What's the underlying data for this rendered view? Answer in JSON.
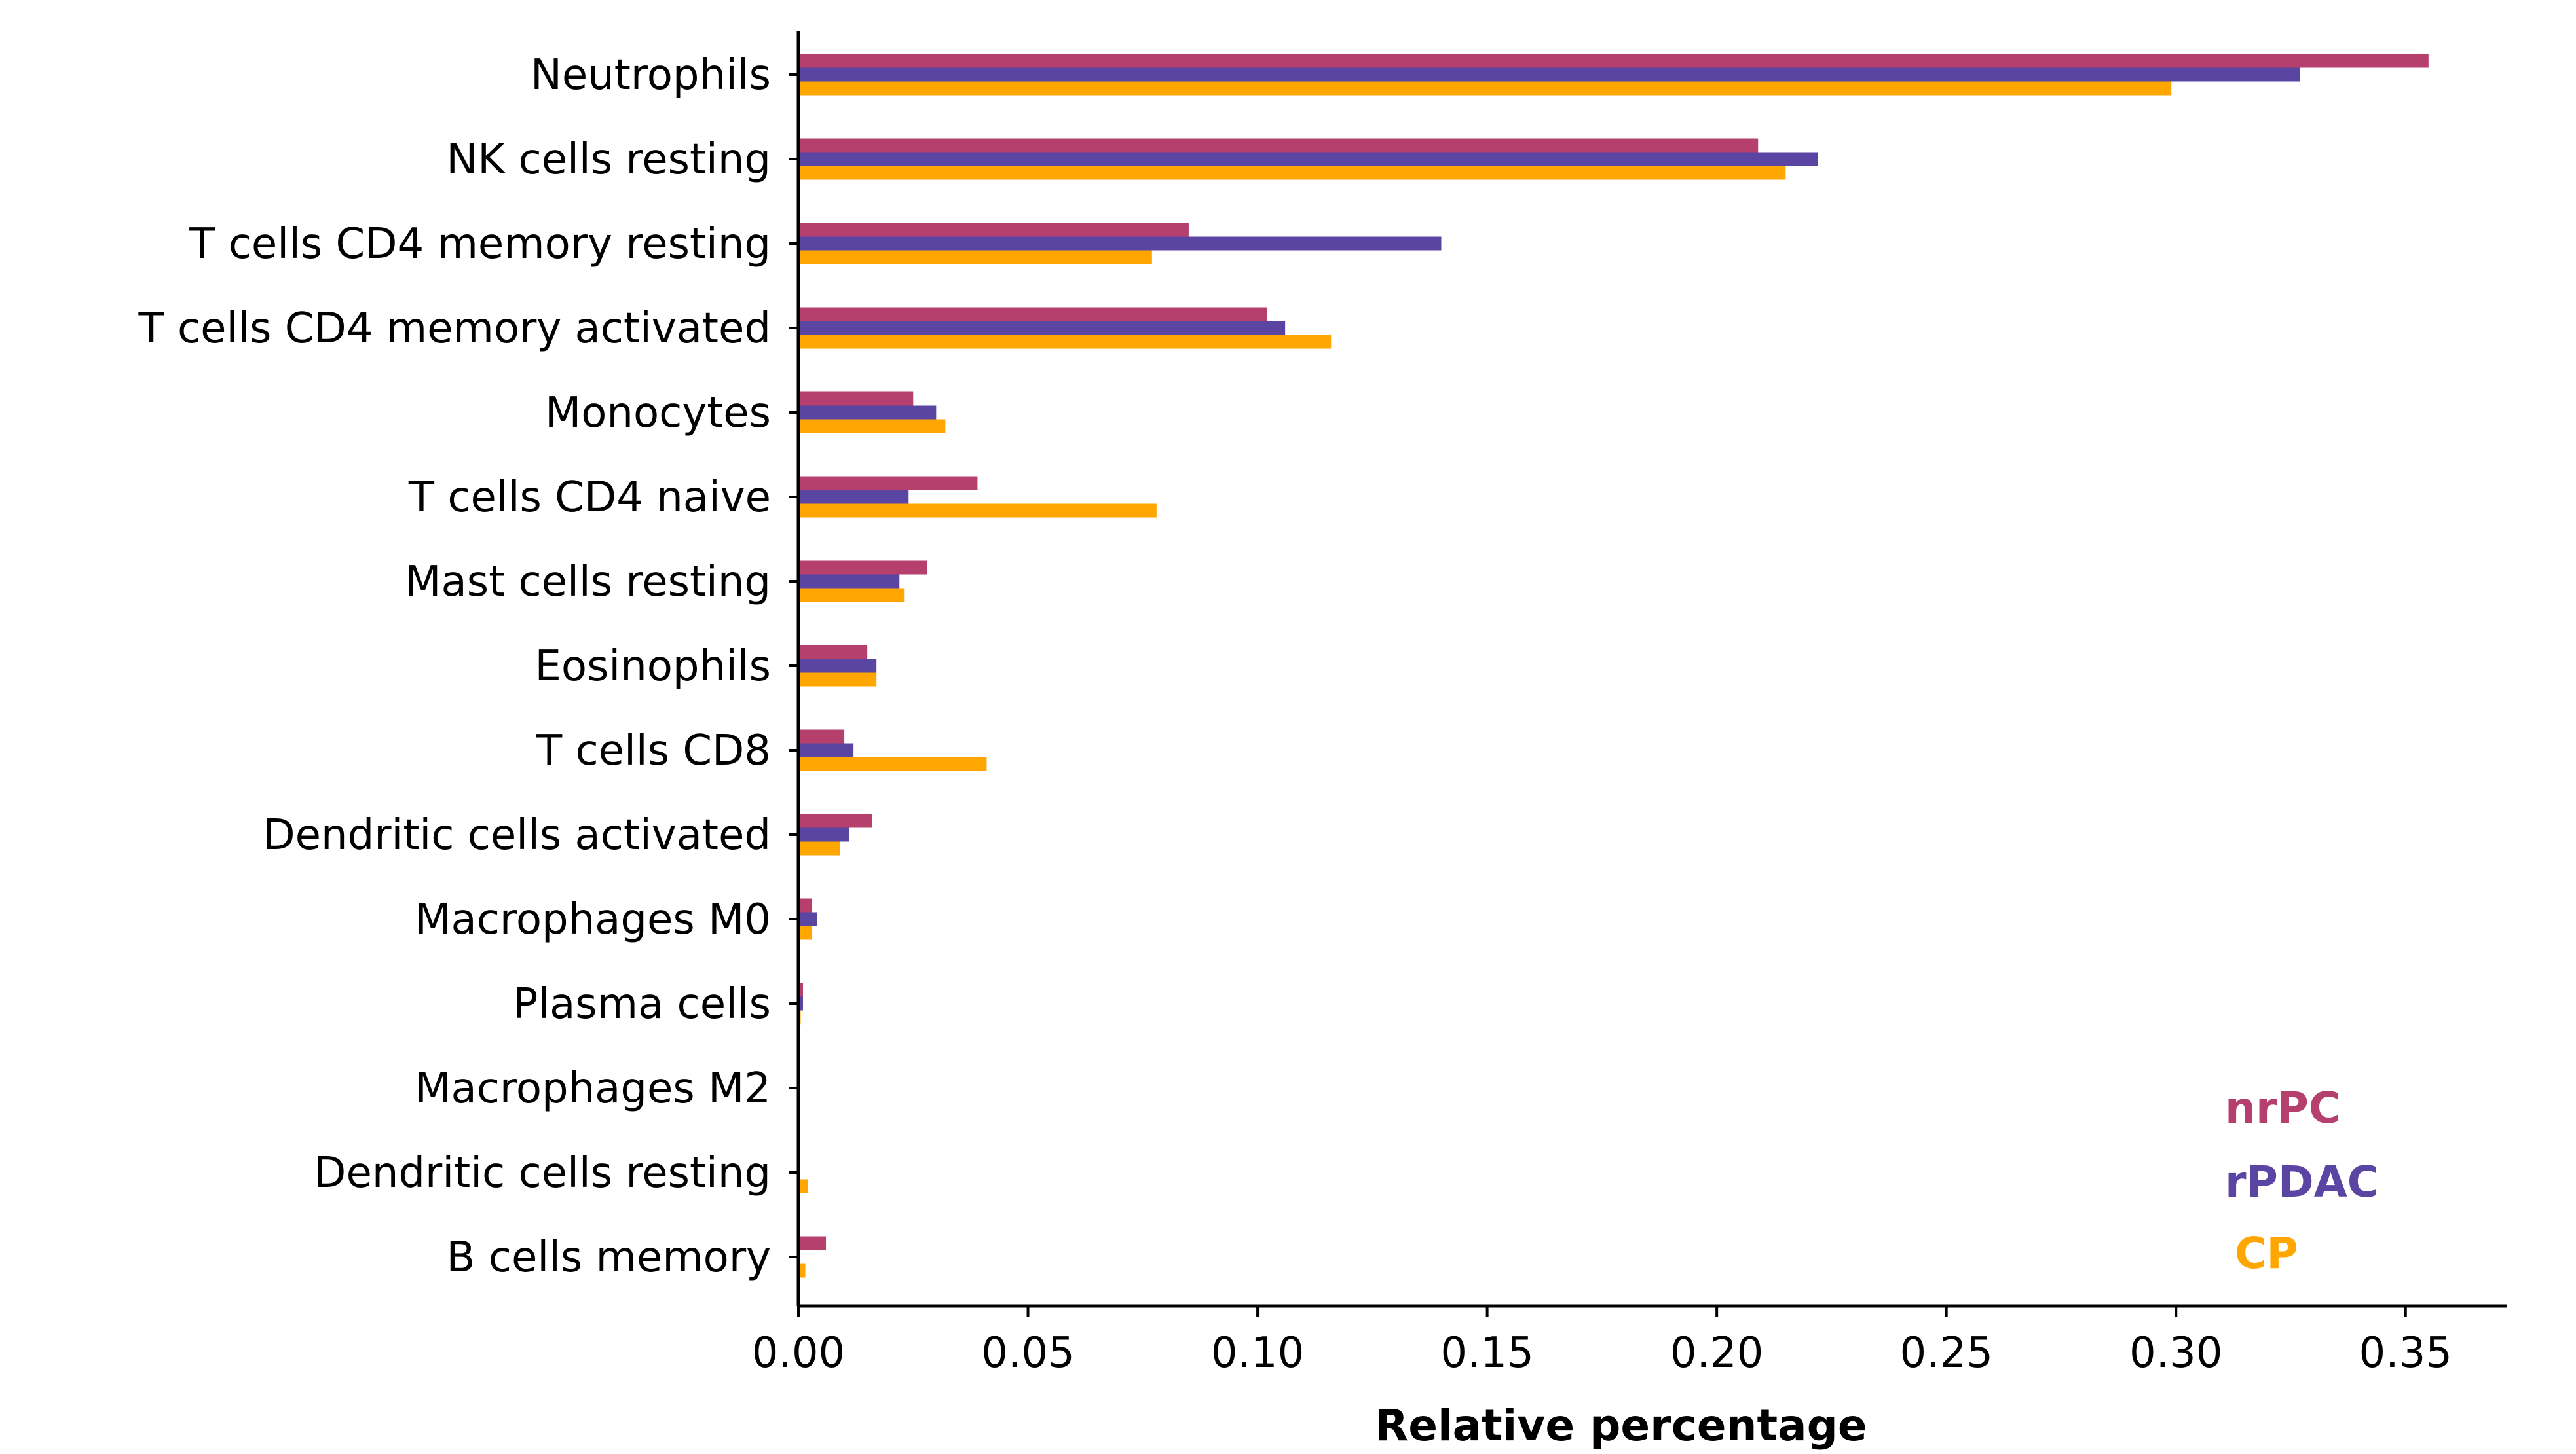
{
  "chart_data": {
    "type": "bar",
    "orientation": "horizontal",
    "title": "",
    "xlabel": "Relative percentage",
    "ylabel": "",
    "xlim": [
      0,
      0.372
    ],
    "xticks": [
      0.0,
      0.05,
      0.1,
      0.15,
      0.2,
      0.25,
      0.3,
      0.35
    ],
    "xtick_labels": [
      "0.00",
      "0.05",
      "0.10",
      "0.15",
      "0.20",
      "0.25",
      "0.30",
      "0.35"
    ],
    "grid": false,
    "legend_position": "bottom-right",
    "categories": [
      "Neutrophils",
      "NK cells resting",
      "T cells CD4 memory resting",
      "T cells CD4 memory activated",
      "Monocytes",
      "T cells CD4 naive",
      "Mast cells resting",
      "Eosinophils",
      "T cells CD8",
      "Dendritic cells activated",
      "Macrophages M0",
      "Plasma cells",
      "Macrophages M2",
      "Dendritic cells resting",
      "B cells memory"
    ],
    "series": [
      {
        "name": "nrPC",
        "color": "#b5406e",
        "values": [
          0.355,
          0.209,
          0.085,
          0.102,
          0.025,
          0.039,
          0.028,
          0.015,
          0.01,
          0.016,
          0.003,
          0.001,
          0.0,
          0.0,
          0.006
        ]
      },
      {
        "name": "rPDAC",
        "color": "#5b45a3",
        "values": [
          0.327,
          0.222,
          0.14,
          0.106,
          0.03,
          0.024,
          0.022,
          0.017,
          0.012,
          0.011,
          0.004,
          0.001,
          0.0,
          0.0,
          0.0
        ]
      },
      {
        "name": "CP",
        "color": "#ffa600",
        "values": [
          0.299,
          0.215,
          0.077,
          0.116,
          0.032,
          0.078,
          0.023,
          0.017,
          0.041,
          0.009,
          0.003,
          0.0005,
          0.0,
          0.002,
          0.0015
        ]
      }
    ]
  }
}
